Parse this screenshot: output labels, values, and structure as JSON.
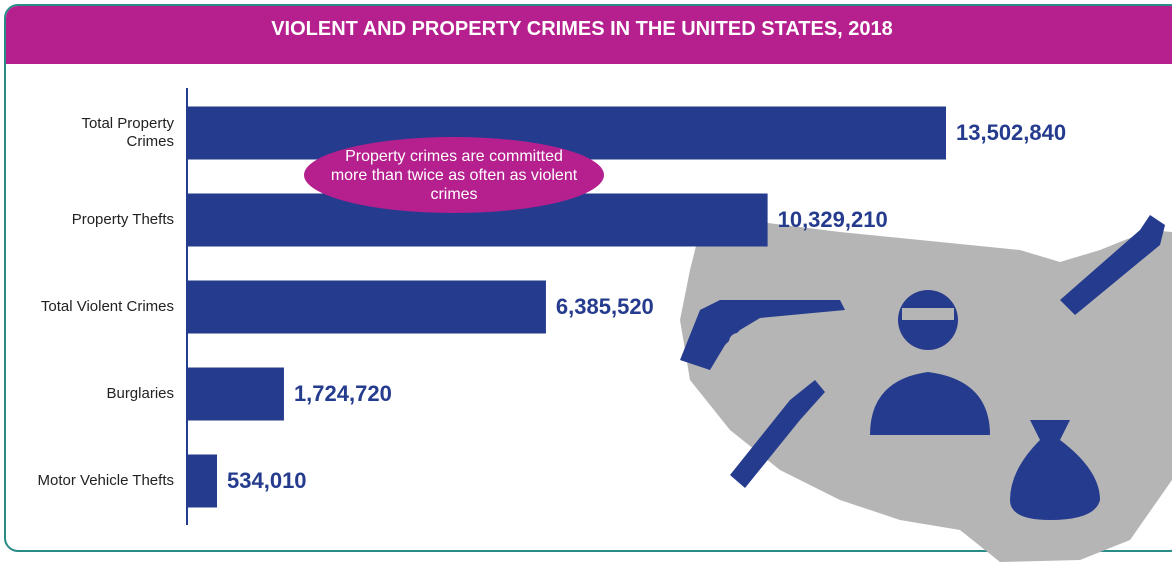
{
  "chart_data": {
    "type": "bar",
    "orientation": "horizontal",
    "title": "VIOLENT AND PROPERTY CRIMES IN THE UNITED STATES, 2018",
    "categories": [
      "Total Property Crimes",
      "Property Thefts",
      "Total Violent Crimes",
      "Burglaries",
      "Motor Vehicle Thefts"
    ],
    "values": [
      13502840,
      10329210,
      6385520,
      1724720,
      534010
    ],
    "value_labels": [
      "13,502,840",
      "10,329,210",
      "6,385,520",
      "1,724,720",
      "534,010"
    ],
    "color": "#253b8e",
    "annotation": "Property crimes are committed more than twice as often as violent crimes"
  }
}
